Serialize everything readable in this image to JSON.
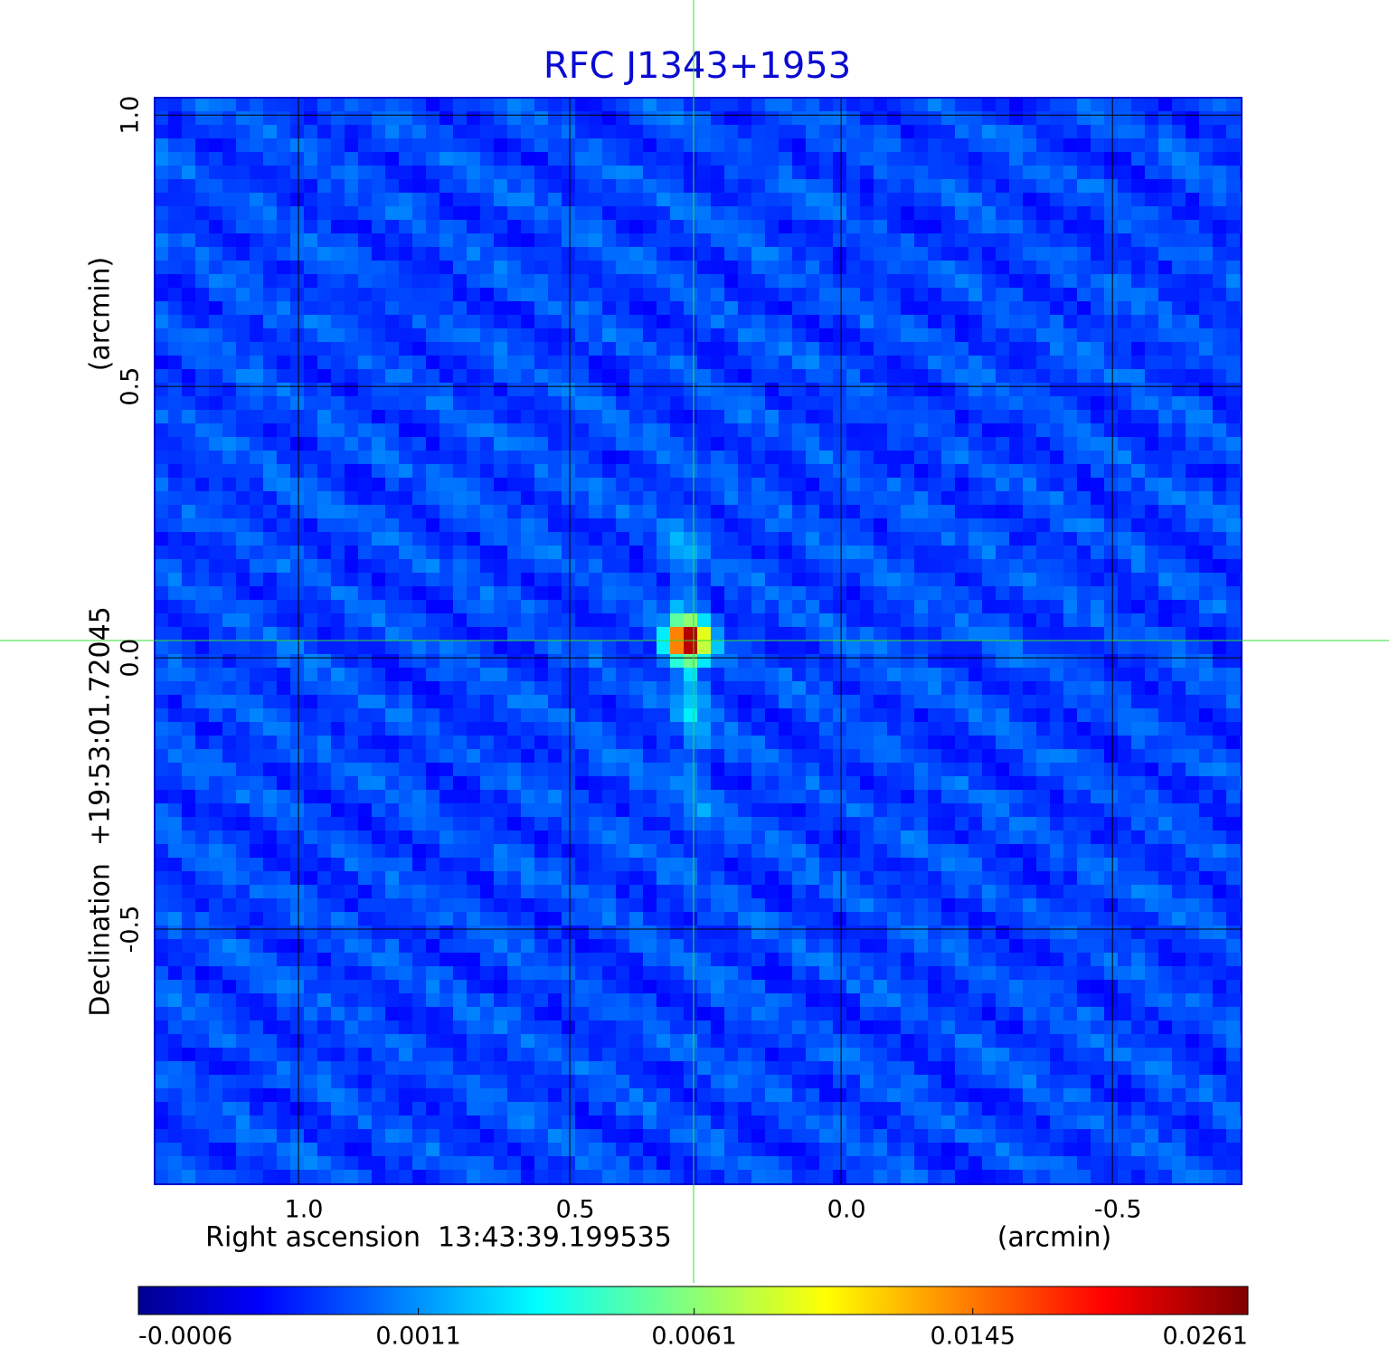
{
  "chart_data": {
    "type": "image",
    "title": "RFC J1343+1953",
    "title_color": "#0a0ad2",
    "x_label": "Right ascension  13:43:39.199535",
    "x_unit": "(arcmin)",
    "y_label": "Declination  +19:53:01.72045",
    "y_unit": "(arcmin)",
    "xlim": [
      1.265,
      -0.738
    ],
    "ylim": [
      -0.97,
      1.032
    ],
    "xticks": [
      {
        "value": 1,
        "label": "1.0"
      },
      0.5,
      {
        "value": 0,
        "label": "0.0"
      },
      -0.5
    ],
    "yticks": [
      {
        "value": 1,
        "label": "1.0"
      },
      0.5,
      {
        "value": 0,
        "label": "0.0"
      },
      -0.5
    ],
    "grid": true,
    "colormap": "jet",
    "colorbar": {
      "scale": "sqrt",
      "lim": [
        -0.0006,
        0.0261
      ],
      "ticks": [
        -0.0006,
        0.0011,
        0.0061,
        0.0145,
        0.0261
      ]
    }
  }
}
